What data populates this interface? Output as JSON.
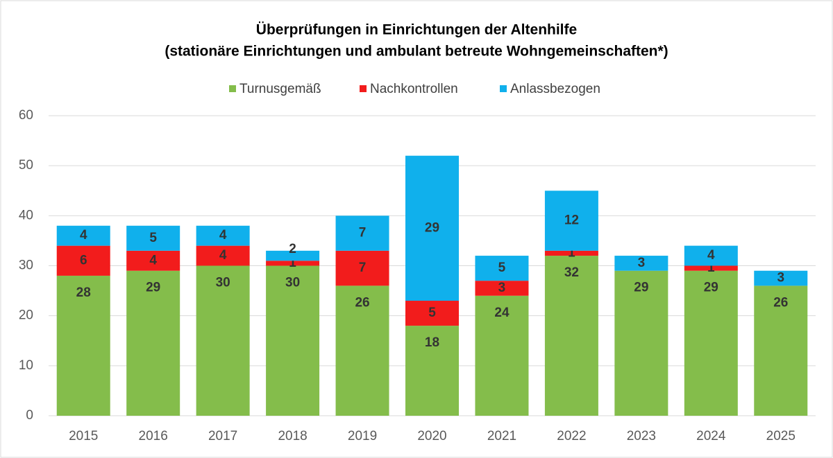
{
  "chart_data": {
    "type": "stacked_bar",
    "title": "Überprüfungen in Einrichtungen der Altenhilfe",
    "subtitle": "(stationäre Einrichtungen und ambulant betreute Wohngemeinschaften*)",
    "categories": [
      "2015",
      "2016",
      "2017",
      "2018",
      "2019",
      "2020",
      "2021",
      "2022",
      "2023",
      "2024",
      "2025"
    ],
    "series": [
      {
        "name": "Turnusgemäß",
        "color": "#84bd4b",
        "values": [
          28,
          29,
          30,
          30,
          26,
          18,
          24,
          32,
          29,
          29,
          26
        ]
      },
      {
        "name": "Nachkontrollen",
        "color": "#f21c1c",
        "values": [
          6,
          4,
          4,
          1,
          7,
          5,
          3,
          1,
          null,
          1,
          null
        ]
      },
      {
        "name": "Anlassbezogen",
        "color": "#10b0ec",
        "values": [
          4,
          5,
          4,
          2,
          7,
          29,
          5,
          12,
          3,
          4,
          3
        ]
      }
    ],
    "ylim": [
      0,
      60
    ],
    "yticks": [
      0,
      10,
      20,
      30,
      40,
      50,
      60
    ],
    "grid": true,
    "legend": "top"
  }
}
